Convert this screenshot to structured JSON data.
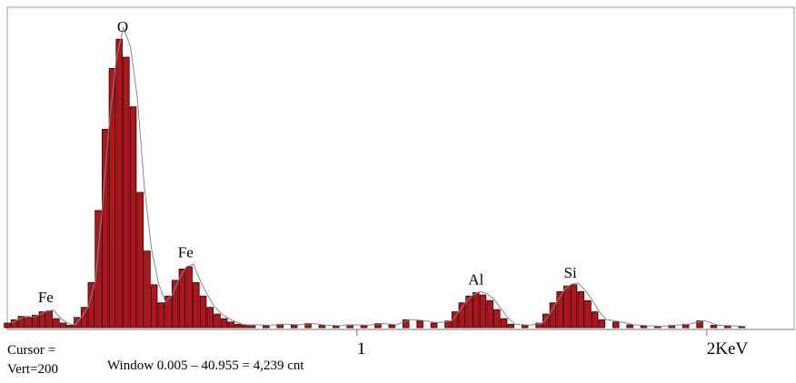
{
  "chart_data": {
    "type": "bar",
    "title": "",
    "xlabel": "",
    "ylabel": "",
    "x_unit": "KeV",
    "xlim": [
      0,
      2.25
    ],
    "ylim": [
      0,
      1550
    ],
    "x_ticks": [
      {
        "value": 1,
        "label": "1"
      },
      {
        "value": 2,
        "label": "2KeV"
      }
    ],
    "peaks": [
      {
        "element": "Fe",
        "energy": 0.11,
        "counts": 80
      },
      {
        "element": "O",
        "energy": 0.33,
        "counts": 1280
      },
      {
        "element": "Fe",
        "energy": 0.51,
        "counts": 280
      },
      {
        "element": "Al",
        "energy": 1.34,
        "counts": 160
      },
      {
        "element": "Si",
        "energy": 1.61,
        "counts": 190
      }
    ],
    "series": [
      {
        "values": [
          [
            0.0,
            20
          ],
          [
            0.02,
            35
          ],
          [
            0.04,
            50
          ],
          [
            0.06,
            45
          ],
          [
            0.08,
            55
          ],
          [
            0.1,
            70
          ],
          [
            0.12,
            75
          ],
          [
            0.14,
            40
          ],
          [
            0.16,
            20
          ],
          [
            0.18,
            10
          ],
          [
            0.2,
            45
          ],
          [
            0.22,
            90
          ],
          [
            0.24,
            200
          ],
          [
            0.26,
            520
          ],
          [
            0.28,
            880
          ],
          [
            0.3,
            1150
          ],
          [
            0.32,
            1280
          ],
          [
            0.34,
            1200
          ],
          [
            0.36,
            980
          ],
          [
            0.38,
            600
          ],
          [
            0.4,
            340
          ],
          [
            0.42,
            190
          ],
          [
            0.44,
            110
          ],
          [
            0.46,
            140
          ],
          [
            0.48,
            210
          ],
          [
            0.5,
            260
          ],
          [
            0.52,
            270
          ],
          [
            0.54,
            200
          ],
          [
            0.56,
            140
          ],
          [
            0.58,
            90
          ],
          [
            0.6,
            60
          ],
          [
            0.62,
            40
          ],
          [
            0.64,
            25
          ],
          [
            0.66,
            15
          ],
          [
            0.68,
            10
          ],
          [
            0.7,
            12
          ],
          [
            0.74,
            10
          ],
          [
            0.78,
            15
          ],
          [
            0.82,
            12
          ],
          [
            0.86,
            18
          ],
          [
            0.9,
            10
          ],
          [
            0.94,
            8
          ],
          [
            0.98,
            12
          ],
          [
            1.02,
            10
          ],
          [
            1.06,
            18
          ],
          [
            1.1,
            12
          ],
          [
            1.14,
            35
          ],
          [
            1.18,
            30
          ],
          [
            1.22,
            20
          ],
          [
            1.26,
            30
          ],
          [
            1.28,
            70
          ],
          [
            1.3,
            110
          ],
          [
            1.32,
            140
          ],
          [
            1.34,
            155
          ],
          [
            1.36,
            145
          ],
          [
            1.38,
            120
          ],
          [
            1.4,
            80
          ],
          [
            1.42,
            40
          ],
          [
            1.44,
            15
          ],
          [
            1.48,
            10
          ],
          [
            1.52,
            20
          ],
          [
            1.54,
            60
          ],
          [
            1.56,
            110
          ],
          [
            1.58,
            160
          ],
          [
            1.6,
            185
          ],
          [
            1.62,
            190
          ],
          [
            1.64,
            160
          ],
          [
            1.66,
            120
          ],
          [
            1.68,
            70
          ],
          [
            1.7,
            35
          ],
          [
            1.74,
            25
          ],
          [
            1.78,
            12
          ],
          [
            1.82,
            8
          ],
          [
            1.86,
            6
          ],
          [
            1.9,
            10
          ],
          [
            1.94,
            15
          ],
          [
            1.98,
            30
          ],
          [
            2.02,
            10
          ],
          [
            2.06,
            8
          ],
          [
            2.1,
            5
          ]
        ]
      }
    ]
  },
  "readout": {
    "cursor": "Cursor =",
    "vert": "Vert=200",
    "window": "Window  0.005 – 40.955 = 4,239 cnt"
  },
  "colors": {
    "bar_fill": "#b3141b",
    "bar_edge": "#2a0000",
    "overlay_line": "#888888",
    "axis": "#777777"
  }
}
